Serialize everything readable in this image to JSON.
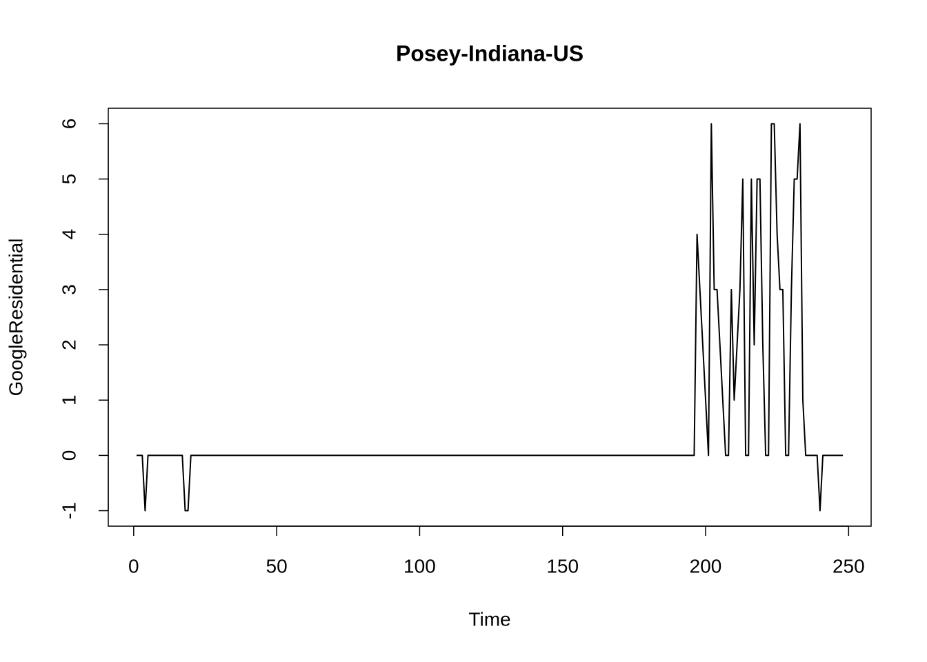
{
  "chart_data": {
    "type": "line",
    "title": "Posey-Indiana-US",
    "x_label": "Time",
    "y_label": "GoogleResidential",
    "x": [
      1,
      2,
      3,
      4,
      5,
      6,
      7,
      8,
      9,
      10,
      11,
      12,
      13,
      14,
      15,
      16,
      17,
      18,
      19,
      20,
      21,
      22,
      23,
      24,
      25,
      26,
      27,
      28,
      29,
      30,
      31,
      32,
      33,
      34,
      35,
      36,
      37,
      38,
      39,
      40,
      41,
      42,
      43,
      44,
      45,
      46,
      47,
      48,
      49,
      50,
      51,
      52,
      53,
      54,
      55,
      56,
      57,
      58,
      59,
      60,
      61,
      62,
      63,
      64,
      65,
      66,
      67,
      68,
      69,
      70,
      71,
      72,
      73,
      74,
      75,
      76,
      77,
      78,
      79,
      80,
      81,
      82,
      83,
      84,
      85,
      86,
      87,
      88,
      89,
      90,
      91,
      92,
      93,
      94,
      95,
      96,
      97,
      98,
      99,
      100,
      101,
      102,
      103,
      104,
      105,
      106,
      107,
      108,
      109,
      110,
      111,
      112,
      113,
      114,
      115,
      116,
      117,
      118,
      119,
      120,
      121,
      122,
      123,
      124,
      125,
      126,
      127,
      128,
      129,
      130,
      131,
      132,
      133,
      134,
      135,
      136,
      137,
      138,
      139,
      140,
      141,
      142,
      143,
      144,
      145,
      146,
      147,
      148,
      149,
      150,
      151,
      152,
      153,
      154,
      155,
      156,
      157,
      158,
      159,
      160,
      161,
      162,
      163,
      164,
      165,
      166,
      167,
      168,
      169,
      170,
      171,
      172,
      173,
      174,
      175,
      176,
      177,
      178,
      179,
      180,
      181,
      182,
      183,
      184,
      185,
      186,
      187,
      188,
      189,
      190,
      191,
      192,
      193,
      194,
      195,
      196,
      197,
      198,
      199,
      200,
      201,
      202,
      203,
      204,
      205,
      206,
      207,
      208,
      209,
      210,
      211,
      212,
      213,
      214,
      215,
      216,
      217,
      218,
      219,
      220,
      221,
      222,
      223,
      224,
      225,
      226,
      227,
      228,
      229,
      230,
      231,
      232,
      233,
      234,
      235,
      236,
      237,
      238,
      239,
      240,
      241,
      242,
      243,
      244,
      245,
      246,
      247,
      248
    ],
    "series": [
      {
        "name": "GoogleResidential",
        "color": "#000000",
        "values": [
          0,
          0,
          0,
          -1,
          0,
          0,
          0,
          0,
          0,
          0,
          0,
          0,
          0,
          0,
          0,
          0,
          0,
          -1,
          -1,
          0,
          0,
          0,
          0,
          0,
          0,
          0,
          0,
          0,
          0,
          0,
          0,
          0,
          0,
          0,
          0,
          0,
          0,
          0,
          0,
          0,
          0,
          0,
          0,
          0,
          0,
          0,
          0,
          0,
          0,
          0,
          0,
          0,
          0,
          0,
          0,
          0,
          0,
          0,
          0,
          0,
          0,
          0,
          0,
          0,
          0,
          0,
          0,
          0,
          0,
          0,
          0,
          0,
          0,
          0,
          0,
          0,
          0,
          0,
          0,
          0,
          0,
          0,
          0,
          0,
          0,
          0,
          0,
          0,
          0,
          0,
          0,
          0,
          0,
          0,
          0,
          0,
          0,
          0,
          0,
          0,
          0,
          0,
          0,
          0,
          0,
          0,
          0,
          0,
          0,
          0,
          0,
          0,
          0,
          0,
          0,
          0,
          0,
          0,
          0,
          0,
          0,
          0,
          0,
          0,
          0,
          0,
          0,
          0,
          0,
          0,
          0,
          0,
          0,
          0,
          0,
          0,
          0,
          0,
          0,
          0,
          0,
          0,
          0,
          0,
          0,
          0,
          0,
          0,
          0,
          0,
          0,
          0,
          0,
          0,
          0,
          0,
          0,
          0,
          0,
          0,
          0,
          0,
          0,
          0,
          0,
          0,
          0,
          0,
          0,
          0,
          0,
          0,
          0,
          0,
          0,
          0,
          0,
          0,
          0,
          0,
          0,
          0,
          0,
          0,
          0,
          0,
          0,
          0,
          0,
          0,
          0,
          0,
          0,
          0,
          0,
          0,
          4,
          3,
          2,
          1,
          0,
          6,
          3,
          3,
          2,
          1,
          0,
          0,
          3,
          1,
          2,
          3,
          5,
          0,
          0,
          5,
          2,
          5,
          5,
          2,
          0,
          0,
          6,
          6,
          4,
          3,
          3,
          0,
          0,
          3,
          5,
          5,
          6,
          1,
          0,
          0,
          0,
          0,
          0,
          -1,
          0,
          0,
          0,
          0,
          0,
          0,
          0,
          0
        ]
      }
    ],
    "xlim": [
      -8.88,
      257.88
    ],
    "ylim": [
      -1.28,
      6.28
    ],
    "xticks": [
      0,
      50,
      100,
      150,
      200,
      250
    ],
    "yticks": [
      -1,
      0,
      1,
      2,
      3,
      4,
      5,
      6
    ]
  }
}
